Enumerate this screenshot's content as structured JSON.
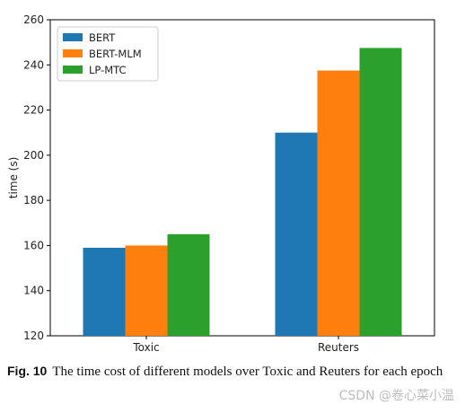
{
  "chart_data": {
    "type": "bar",
    "categories": [
      "Toxic",
      "Reuters"
    ],
    "series": [
      {
        "name": "BERT",
        "color": "#1f77b4",
        "values": [
          159,
          210
        ]
      },
      {
        "name": "BERT-MLM",
        "color": "#ff7f0e",
        "values": [
          160,
          237.5
        ]
      },
      {
        "name": "LP-MTC",
        "color": "#2ca02c",
        "values": [
          165,
          247.5
        ]
      }
    ],
    "xlabel": "",
    "ylabel": "time (s)",
    "ylim": [
      120,
      260
    ],
    "yticks": [
      120,
      140,
      160,
      180,
      200,
      220,
      240,
      260
    ],
    "grid": false,
    "legend_position": "top-left"
  },
  "caption": {
    "label": "Fig. 10",
    "text": "The time cost of different models over Toxic and Reuters for each epoch"
  },
  "watermark": "CSDN @卷心菜小温"
}
